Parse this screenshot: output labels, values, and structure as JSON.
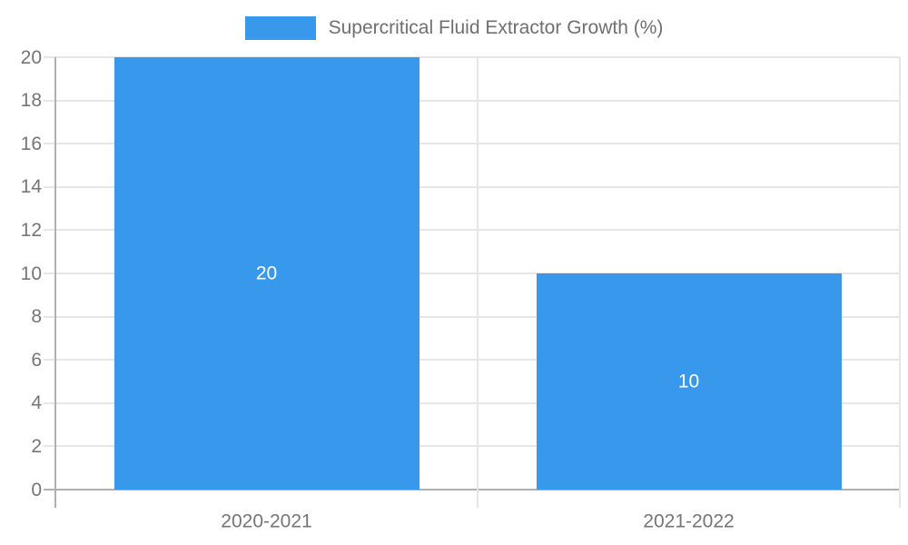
{
  "legend": {
    "label": "Supercritical Fluid Extractor Growth (%)"
  },
  "chart_data": {
    "type": "bar",
    "title": "Supercritical Fluid Extractor Growth (%)",
    "categories": [
      "2020-2021",
      "2021-2022"
    ],
    "values": [
      20,
      10
    ],
    "bar_labels": [
      "20",
      "10"
    ],
    "xlabel": "",
    "ylabel": "",
    "ylim": [
      0,
      20
    ],
    "yticks": [
      0,
      2,
      4,
      6,
      8,
      10,
      12,
      14,
      16,
      18,
      20
    ],
    "grid": true,
    "legend_position": "top",
    "colors": {
      "bar": "#3898ec",
      "grid": "#e6e6e6",
      "axis": "#b0b0b0",
      "tick_label": "#757575",
      "legend_text": "#6f6f6f",
      "value_label": "#ffffff",
      "background": "#ffffff"
    }
  }
}
